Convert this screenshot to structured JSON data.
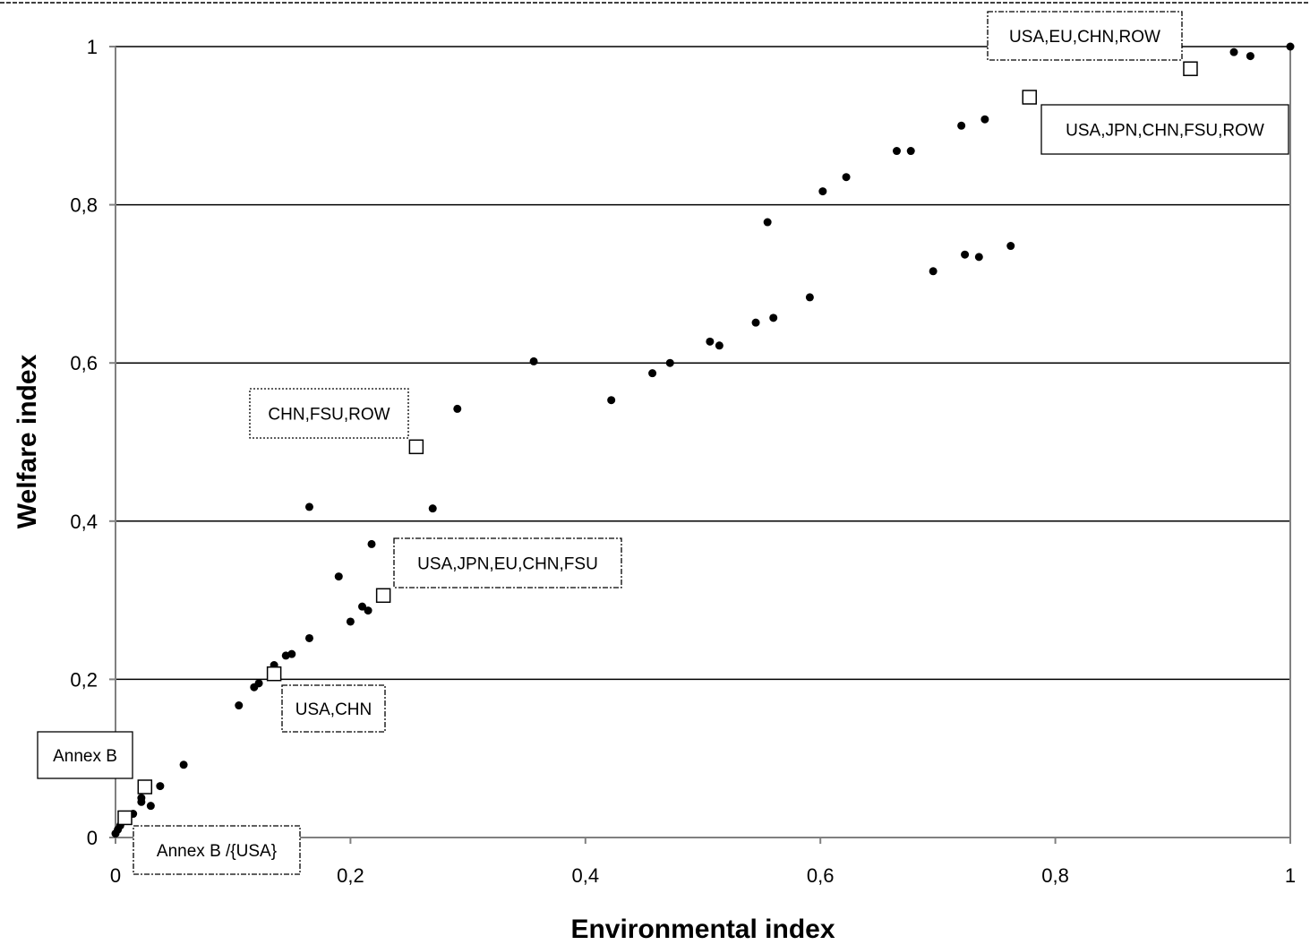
{
  "chart_data": {
    "type": "scatter",
    "title": "",
    "xlabel": "Environmental index",
    "ylabel": "Welfare index",
    "xlim": [
      0,
      1
    ],
    "ylim": [
      0,
      1
    ],
    "x_ticks": [
      "0",
      "0,2",
      "0,4",
      "0,6",
      "0,8",
      "1"
    ],
    "y_ticks": [
      "0",
      "0,2",
      "0,4",
      "0,6",
      "0,8",
      "1"
    ],
    "grid": "horizontal",
    "legend": "none",
    "colors": {
      "points": "#000000",
      "grid": "#000000",
      "plot_border": "#808080",
      "marker_fill": "#ffffff"
    },
    "series": [
      {
        "marker": "dot",
        "points": [
          [
            0.0,
            0.005
          ],
          [
            0.002,
            0.01
          ],
          [
            0.004,
            0.015
          ],
          [
            0.006,
            0.02
          ],
          [
            0.015,
            0.03
          ],
          [
            0.022,
            0.045
          ],
          [
            0.022,
            0.05
          ],
          [
            0.03,
            0.04
          ],
          [
            0.038,
            0.065
          ],
          [
            0.058,
            0.092
          ],
          [
            0.105,
            0.167
          ],
          [
            0.118,
            0.19
          ],
          [
            0.122,
            0.195
          ],
          [
            0.135,
            0.218
          ],
          [
            0.145,
            0.23
          ],
          [
            0.15,
            0.232
          ],
          [
            0.165,
            0.252
          ],
          [
            0.165,
            0.418
          ],
          [
            0.19,
            0.33
          ],
          [
            0.2,
            0.273
          ],
          [
            0.21,
            0.292
          ],
          [
            0.215,
            0.287
          ],
          [
            0.218,
            0.371
          ],
          [
            0.27,
            0.416
          ],
          [
            0.291,
            0.542
          ],
          [
            0.356,
            0.602
          ],
          [
            0.422,
            0.553
          ],
          [
            0.457,
            0.587
          ],
          [
            0.472,
            0.6
          ],
          [
            0.506,
            0.627
          ],
          [
            0.514,
            0.622
          ],
          [
            0.545,
            0.651
          ],
          [
            0.555,
            0.778
          ],
          [
            0.56,
            0.657
          ],
          [
            0.591,
            0.683
          ],
          [
            0.602,
            0.817
          ],
          [
            0.622,
            0.835
          ],
          [
            0.665,
            0.868
          ],
          [
            0.677,
            0.868
          ],
          [
            0.696,
            0.716
          ],
          [
            0.72,
            0.9
          ],
          [
            0.723,
            0.737
          ],
          [
            0.735,
            0.734
          ],
          [
            0.74,
            0.908
          ],
          [
            0.762,
            0.748
          ],
          [
            0.952,
            0.993
          ],
          [
            0.966,
            0.988
          ],
          [
            1.0,
            1.0
          ]
        ]
      },
      {
        "marker": "open-square",
        "points": [
          [
            0.008,
            0.025
          ],
          [
            0.025,
            0.064
          ],
          [
            0.135,
            0.207
          ],
          [
            0.228,
            0.306
          ],
          [
            0.256,
            0.494
          ],
          [
            0.778,
            0.936
          ],
          [
            0.915,
            0.972
          ]
        ]
      }
    ],
    "annotations": [
      {
        "text": "USA,EU,CHN,ROW",
        "border": "dash-dot"
      },
      {
        "text": "USA,JPN,CHN,FSU,ROW",
        "border": "solid"
      },
      {
        "text": "CHN,FSU,ROW",
        "border": "dotted"
      },
      {
        "text": "USA,JPN,EU,CHN,FSU",
        "border": "dash-dot"
      },
      {
        "text": "USA,CHN",
        "border": "dash-dot"
      },
      {
        "text": "Annex B",
        "border": "solid"
      },
      {
        "text": "Annex B /{USA}",
        "border": "dash-dot"
      }
    ]
  }
}
